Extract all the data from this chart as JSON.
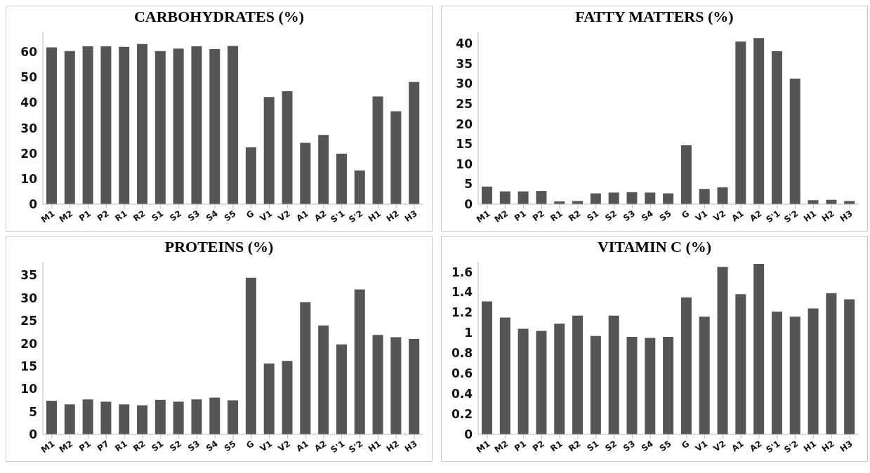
{
  "chart_data": [
    {
      "type": "bar",
      "title": "CARBOHYDRATES (%)",
      "categories": [
        "M1",
        "M2",
        "P1",
        "P2",
        "R1",
        "R2",
        "S1",
        "S2",
        "S3",
        "S4",
        "S5",
        "G",
        "V1",
        "V2",
        "A1",
        "A2",
        "S'1",
        "S'2",
        "H1",
        "H2",
        "H3"
      ],
      "values": [
        61.8,
        60.3,
        62.2,
        62.2,
        62.0,
        63.1,
        60.3,
        61.3,
        62.2,
        61.1,
        62.3,
        22.4,
        42.2,
        44.5,
        24.2,
        27.3,
        19.9,
        13.3,
        42.4,
        36.6,
        48.2
      ],
      "color": "#555555",
      "ylim": [
        0,
        68
      ],
      "yticks": [
        0,
        10,
        20,
        30,
        40,
        50,
        60
      ]
    },
    {
      "type": "bar",
      "title": "FATTY MATTERS (%)",
      "categories": [
        "M1",
        "M2",
        "P1",
        "P2",
        "R1",
        "R2",
        "S1",
        "S2",
        "S3",
        "S4",
        "S5",
        "G",
        "V1",
        "V2",
        "A1",
        "A2",
        "S'1",
        "S'2",
        "H1",
        "H2",
        "H3"
      ],
      "values": [
        4.4,
        3.2,
        3.2,
        3.3,
        0.7,
        0.8,
        2.7,
        2.9,
        3.0,
        2.9,
        2.7,
        14.7,
        3.8,
        4.2,
        40.5,
        41.4,
        38.1,
        31.3,
        1.0,
        1.1,
        0.8
      ],
      "color": "#555555",
      "ylim": [
        0,
        43
      ],
      "yticks": [
        0,
        5,
        10,
        15,
        20,
        25,
        30,
        35,
        40
      ]
    },
    {
      "type": "bar",
      "title": "PROTEINS (%)",
      "categories": [
        "M1",
        "M2",
        "P1",
        "P7",
        "R1",
        "R2",
        "S1",
        "S2",
        "S3",
        "S4",
        "S5",
        "G",
        "V1",
        "V2",
        "A1",
        "A2",
        "S'1",
        "S'2",
        "H1",
        "H2",
        "H3"
      ],
      "values": [
        7.4,
        6.6,
        7.7,
        7.2,
        6.6,
        6.4,
        7.6,
        7.2,
        7.7,
        8.1,
        7.5,
        34.5,
        15.6,
        16.2,
        29.1,
        24.0,
        19.8,
        31.9,
        21.9,
        21.4,
        21.0
      ],
      "color": "#555555",
      "ylim": [
        0,
        38
      ],
      "yticks": [
        0,
        5,
        10,
        15,
        20,
        25,
        30,
        35
      ]
    },
    {
      "type": "bar",
      "title": "VITAMIN C (%)",
      "categories": [
        "M1",
        "M2",
        "P1",
        "P2",
        "R1",
        "R2",
        "S1",
        "S2",
        "S3",
        "S4",
        "S5",
        "G",
        "V1",
        "V2",
        "A1",
        "A2",
        "S'1",
        "S'2",
        "H1",
        "H2",
        "H3"
      ],
      "values": [
        1.31,
        1.15,
        1.04,
        1.02,
        1.09,
        1.17,
        0.97,
        1.17,
        0.96,
        0.95,
        0.96,
        1.35,
        1.16,
        1.65,
        1.38,
        1.68,
        1.21,
        1.16,
        1.24,
        1.39,
        1.33
      ],
      "color": "#555555",
      "ylim": [
        0,
        1.7
      ],
      "yticks": [
        0,
        0.2,
        0.4,
        0.6,
        0.8,
        1,
        1.2,
        1.4,
        1.6
      ]
    }
  ]
}
